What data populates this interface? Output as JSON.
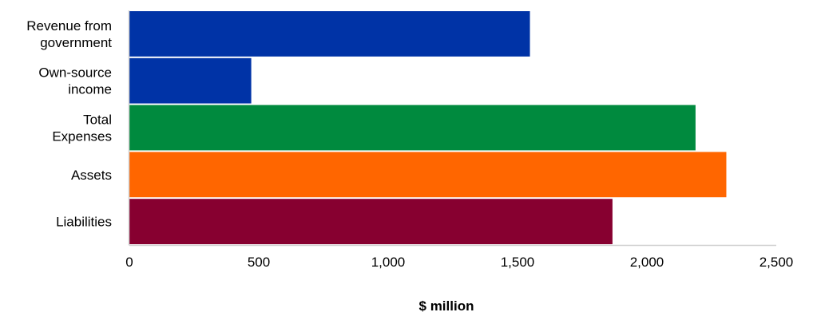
{
  "chart_data": {
    "type": "bar",
    "orientation": "horizontal",
    "title": "",
    "xlabel": "$ million",
    "ylabel": "",
    "xlim": [
      0,
      2500
    ],
    "grid": false,
    "legend": "none",
    "x_ticks": [
      0,
      500,
      1000,
      1500,
      2000,
      2500
    ],
    "x_tick_labels": [
      "0",
      "500",
      "1,000",
      "1,500",
      "2,000",
      "2,500"
    ],
    "categories": [
      [
        "Revenue from",
        "government"
      ],
      [
        "Own-source",
        "income"
      ],
      [
        "Total",
        "Expenses"
      ],
      [
        "Assets"
      ],
      [
        "Liabilities"
      ]
    ],
    "values": [
      1548,
      471,
      2188,
      2307,
      1867
    ],
    "colors": [
      "#0033a6",
      "#0033a6",
      "#008a3e",
      "#ff6600",
      "#870030"
    ]
  }
}
